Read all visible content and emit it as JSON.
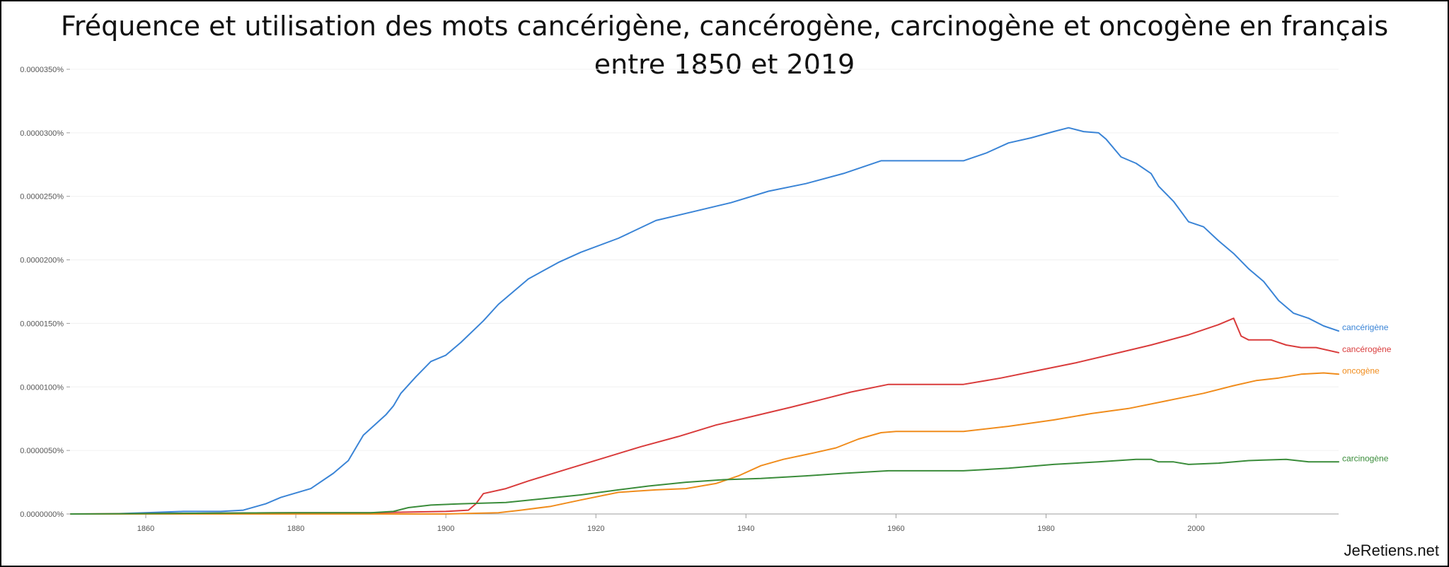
{
  "title_line1": "Fréquence et utilisation des mots cancérigène, cancérogène, carcinogène et oncogène en français",
  "title_line2": "entre 1850 et 2019",
  "watermark": "JeRetiens.net",
  "chart_data": {
    "type": "line",
    "xlim": [
      1850,
      2019
    ],
    "ylim": [
      0,
      3.5e-05
    ],
    "x_ticks": [
      1860,
      1880,
      1900,
      1920,
      1940,
      1960,
      1980,
      2000
    ],
    "x_tick_labels": [
      "1860",
      "1880",
      "1900",
      "1920",
      "1940",
      "1960",
      "1980",
      "2000"
    ],
    "y_ticks": [
      0,
      5e-06,
      1e-05,
      1.5e-05,
      2e-05,
      2.5e-05,
      3e-05,
      3.5e-05
    ],
    "y_tick_labels": [
      "0.0000000%",
      "0.0000050%",
      "0.0000100%",
      "0.0000150%",
      "0.0000200%",
      "0.0000250%",
      "0.0000300%",
      "0.0000350%"
    ],
    "grid": true,
    "legend": "inline-right",
    "series": [
      {
        "name": "cancérigène",
        "color": "#3a84d6",
        "points": [
          [
            1850,
            0
          ],
          [
            1855,
            0
          ],
          [
            1860,
            1e-07
          ],
          [
            1865,
            2e-07
          ],
          [
            1870,
            2e-07
          ],
          [
            1873,
            3e-07
          ],
          [
            1876,
            8e-07
          ],
          [
            1878,
            1.3e-06
          ],
          [
            1882,
            2e-06
          ],
          [
            1885,
            3.2e-06
          ],
          [
            1887,
            4.2e-06
          ],
          [
            1889,
            6.2e-06
          ],
          [
            1892,
            7.8e-06
          ],
          [
            1893,
            8.5e-06
          ],
          [
            1894,
            9.5e-06
          ],
          [
            1896,
            1.08e-05
          ],
          [
            1898,
            1.2e-05
          ],
          [
            1900,
            1.25e-05
          ],
          [
            1902,
            1.35e-05
          ],
          [
            1905,
            1.52e-05
          ],
          [
            1907,
            1.65e-05
          ],
          [
            1911,
            1.85e-05
          ],
          [
            1915,
            1.98e-05
          ],
          [
            1918,
            2.06e-05
          ],
          [
            1923,
            2.17e-05
          ],
          [
            1928,
            2.31e-05
          ],
          [
            1933,
            2.38e-05
          ],
          [
            1938,
            2.45e-05
          ],
          [
            1943,
            2.54e-05
          ],
          [
            1948,
            2.6e-05
          ],
          [
            1953,
            2.68e-05
          ],
          [
            1958,
            2.78e-05
          ],
          [
            1963,
            2.78e-05
          ],
          [
            1969,
            2.78e-05
          ],
          [
            1972,
            2.84e-05
          ],
          [
            1975,
            2.92e-05
          ],
          [
            1978,
            2.96e-05
          ],
          [
            1981,
            3.01e-05
          ],
          [
            1983,
            3.04e-05
          ],
          [
            1985,
            3.01e-05
          ],
          [
            1987,
            3e-05
          ],
          [
            1988,
            2.95e-05
          ],
          [
            1990,
            2.81e-05
          ],
          [
            1992,
            2.76e-05
          ],
          [
            1994,
            2.68e-05
          ],
          [
            1995,
            2.58e-05
          ],
          [
            1997,
            2.46e-05
          ],
          [
            1999,
            2.3e-05
          ],
          [
            2001,
            2.26e-05
          ],
          [
            2003,
            2.15e-05
          ],
          [
            2005,
            2.05e-05
          ],
          [
            2007,
            1.93e-05
          ],
          [
            2009,
            1.83e-05
          ],
          [
            2011,
            1.68e-05
          ],
          [
            2013,
            1.58e-05
          ],
          [
            2015,
            1.54e-05
          ],
          [
            2017,
            1.48e-05
          ],
          [
            2019,
            1.44e-05
          ]
        ]
      },
      {
        "name": "cancérogène",
        "color": "#d93b3b",
        "points": [
          [
            1850,
            0
          ],
          [
            1880,
            1e-07
          ],
          [
            1890,
            1e-07
          ],
          [
            1900,
            2e-07
          ],
          [
            1903,
            3e-07
          ],
          [
            1904,
            8e-07
          ],
          [
            1905,
            1.6e-06
          ],
          [
            1908,
            2e-06
          ],
          [
            1911,
            2.6e-06
          ],
          [
            1916,
            3.5e-06
          ],
          [
            1921,
            4.4e-06
          ],
          [
            1926,
            5.3e-06
          ],
          [
            1931,
            6.1e-06
          ],
          [
            1936,
            7e-06
          ],
          [
            1941,
            7.7e-06
          ],
          [
            1946,
            8.4e-06
          ],
          [
            1950,
            9e-06
          ],
          [
            1954,
            9.6e-06
          ],
          [
            1959,
            1.02e-05
          ],
          [
            1964,
            1.02e-05
          ],
          [
            1969,
            1.02e-05
          ],
          [
            1974,
            1.07e-05
          ],
          [
            1979,
            1.13e-05
          ],
          [
            1984,
            1.19e-05
          ],
          [
            1989,
            1.26e-05
          ],
          [
            1994,
            1.33e-05
          ],
          [
            1999,
            1.41e-05
          ],
          [
            2003,
            1.49e-05
          ],
          [
            2005,
            1.54e-05
          ],
          [
            2006,
            1.4e-05
          ],
          [
            2007,
            1.37e-05
          ],
          [
            2010,
            1.37e-05
          ],
          [
            2012,
            1.33e-05
          ],
          [
            2014,
            1.31e-05
          ],
          [
            2016,
            1.31e-05
          ],
          [
            2019,
            1.27e-05
          ]
        ]
      },
      {
        "name": "oncogène",
        "color": "#f08c1c",
        "points": [
          [
            1850,
            0
          ],
          [
            1900,
            0
          ],
          [
            1907,
            1e-07
          ],
          [
            1910,
            3e-07
          ],
          [
            1914,
            6e-07
          ],
          [
            1918,
            1.1e-06
          ],
          [
            1923,
            1.7e-06
          ],
          [
            1928,
            1.9e-06
          ],
          [
            1932,
            2e-06
          ],
          [
            1936,
            2.4e-06
          ],
          [
            1939,
            3e-06
          ],
          [
            1942,
            3.8e-06
          ],
          [
            1945,
            4.3e-06
          ],
          [
            1949,
            4.8e-06
          ],
          [
            1952,
            5.2e-06
          ],
          [
            1955,
            5.9e-06
          ],
          [
            1958,
            6.4e-06
          ],
          [
            1960,
            6.5e-06
          ],
          [
            1969,
            6.5e-06
          ],
          [
            1975,
            6.9e-06
          ],
          [
            1981,
            7.4e-06
          ],
          [
            1986,
            7.9e-06
          ],
          [
            1991,
            8.3e-06
          ],
          [
            1996,
            8.9e-06
          ],
          [
            2001,
            9.5e-06
          ],
          [
            2005,
            1.01e-05
          ],
          [
            2008,
            1.05e-05
          ],
          [
            2011,
            1.07e-05
          ],
          [
            2014,
            1.1e-05
          ],
          [
            2017,
            1.11e-05
          ],
          [
            2019,
            1.1e-05
          ]
        ]
      },
      {
        "name": "carcinogène",
        "color": "#3a8c3a",
        "points": [
          [
            1850,
            0
          ],
          [
            1880,
            1e-07
          ],
          [
            1890,
            1e-07
          ],
          [
            1893,
            2e-07
          ],
          [
            1895,
            5e-07
          ],
          [
            1898,
            7e-07
          ],
          [
            1902,
            8e-07
          ],
          [
            1908,
            9e-07
          ],
          [
            1913,
            1.2e-06
          ],
          [
            1918,
            1.5e-06
          ],
          [
            1923,
            1.9e-06
          ],
          [
            1927,
            2.2e-06
          ],
          [
            1932,
            2.5e-06
          ],
          [
            1937,
            2.7e-06
          ],
          [
            1942,
            2.8e-06
          ],
          [
            1948,
            3e-06
          ],
          [
            1953,
            3.2e-06
          ],
          [
            1959,
            3.4e-06
          ],
          [
            1963,
            3.4e-06
          ],
          [
            1969,
            3.4e-06
          ],
          [
            1975,
            3.6e-06
          ],
          [
            1981,
            3.9e-06
          ],
          [
            1987,
            4.1e-06
          ],
          [
            1992,
            4.3e-06
          ],
          [
            1994,
            4.3e-06
          ],
          [
            1995,
            4.1e-06
          ],
          [
            1997,
            4.1e-06
          ],
          [
            1999,
            3.9e-06
          ],
          [
            2003,
            4e-06
          ],
          [
            2007,
            4.2e-06
          ],
          [
            2012,
            4.3e-06
          ],
          [
            2015,
            4.1e-06
          ],
          [
            2019,
            4.1e-06
          ]
        ]
      }
    ]
  }
}
